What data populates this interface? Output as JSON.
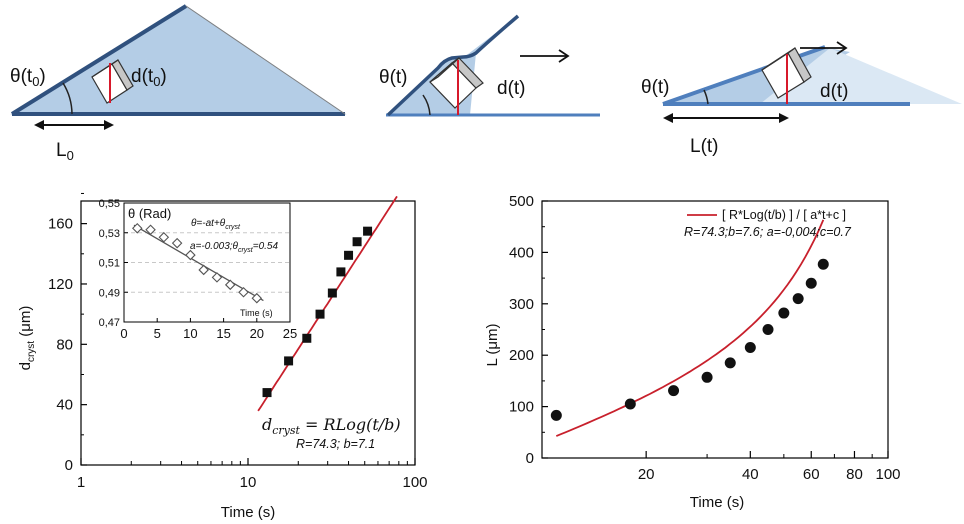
{
  "diagrams": {
    "d1": {
      "theta": "θ(t",
      "theta_sub": "0",
      "theta_close": ")",
      "d": "d(t",
      "d_sub": "0",
      "d_close": ")",
      "L": "L",
      "L_sub": "0"
    },
    "d2": {
      "theta": "θ(t)",
      "d": "d(t)"
    },
    "d3": {
      "theta": "θ(t)",
      "d": "d(t)",
      "L": "L(t)"
    }
  },
  "colors": {
    "fill": "#b4cde6",
    "edge": "#30517e",
    "base": "#4f7fbd",
    "crystal_red": "#d7192b",
    "fit_red": "#c8202c",
    "dark": "#222222"
  },
  "chart_data": [
    {
      "id": "left-main",
      "type": "scatter",
      "xscale": "log",
      "xlim": [
        1,
        100
      ],
      "ylim": [
        0,
        175
      ],
      "xticks": [
        1,
        10,
        100
      ],
      "yticks": [
        0,
        40,
        80,
        120,
        160
      ],
      "x_tick_labels": [
        "1",
        "10",
        "100"
      ],
      "y_tick_labels": [
        "0",
        "40",
        "80",
        "120",
        "160"
      ],
      "xlabel": "Time (s)",
      "ylabel_main": "d",
      "ylabel_sub": "cryst",
      "ylabel_rest": " (μm)",
      "series": [
        {
          "x": [
            13,
            17.5,
            22.5,
            27,
            32,
            36,
            40,
            45,
            52
          ],
          "y": [
            48,
            69,
            84,
            100,
            114,
            128,
            139,
            148,
            155
          ]
        }
      ],
      "fit": {
        "R": 74.3,
        "b": 7.1,
        "x_start": 11.5,
        "x_end": 78
      },
      "equation": {
        "lhs": "d",
        "lhs_sub": "cryst",
        "rhs": " = RLog(t/b)",
        "params": "R=74.3; b=7.1"
      }
    },
    {
      "id": "left-inset",
      "type": "scatter",
      "xlim": [
        0,
        25
      ],
      "ylim": [
        0.47,
        0.55
      ],
      "xticks": [
        0,
        5,
        10,
        15,
        20,
        25
      ],
      "yticks": [
        0.47,
        0.49,
        0.51,
        0.53,
        0.55
      ],
      "x_tick_labels": [
        "0",
        "5",
        "10",
        "15",
        "20",
        "25"
      ],
      "y_tick_labels": [
        "0,47",
        "0,49",
        "0,51",
        "0,53",
        "0,55"
      ],
      "xlabel": "Time (s)",
      "ylabel": "θ (Rad)",
      "series": [
        {
          "x": [
            2,
            4,
            6,
            8,
            10,
            12,
            14,
            16,
            18,
            20
          ],
          "y": [
            0.533,
            0.532,
            0.527,
            0.523,
            0.515,
            0.505,
            0.5,
            0.495,
            0.49,
            0.486
          ]
        }
      ],
      "fit": {
        "a": -0.003,
        "theta0": 0.54,
        "x_start": 1.5,
        "x_end": 21
      },
      "legend": {
        "formula": "θ=-at+θ",
        "formula_sub": "cryst",
        "params": "a=-0.003;θ",
        "params_sub": "cryst",
        "params_end": "=0.54"
      }
    },
    {
      "id": "right-main",
      "type": "scatter",
      "xscale": "log",
      "xlim": [
        10,
        100
      ],
      "ylim": [
        0,
        500
      ],
      "xticks": [
        20,
        40,
        60,
        80,
        100
      ],
      "yticks": [
        0,
        100,
        200,
        300,
        400,
        500
      ],
      "x_tick_labels": [
        "20",
        "40",
        "60",
        "80",
        "100"
      ],
      "y_tick_labels": [
        "0",
        "100",
        "200",
        "300",
        "400",
        "500"
      ],
      "xlabel": "Time (s)",
      "ylabel": "L (μm)",
      "series": [
        {
          "x": [
            11,
            18,
            24,
            30,
            35,
            40,
            45,
            50,
            55,
            60,
            65
          ],
          "y": [
            83,
            105,
            131,
            157,
            185,
            215,
            250,
            282,
            310,
            340,
            377
          ]
        }
      ],
      "fit": {
        "R": 74.3,
        "b": 7.6,
        "a": -0.004,
        "c": 0.7,
        "x_start": 11,
        "x_end": 65
      },
      "legend": {
        "label": "[ R*Log(t/b) ] / [ a*t+c ]",
        "params": "R=74.3;b=7.6; a=-0,004;c=0.7"
      }
    }
  ]
}
